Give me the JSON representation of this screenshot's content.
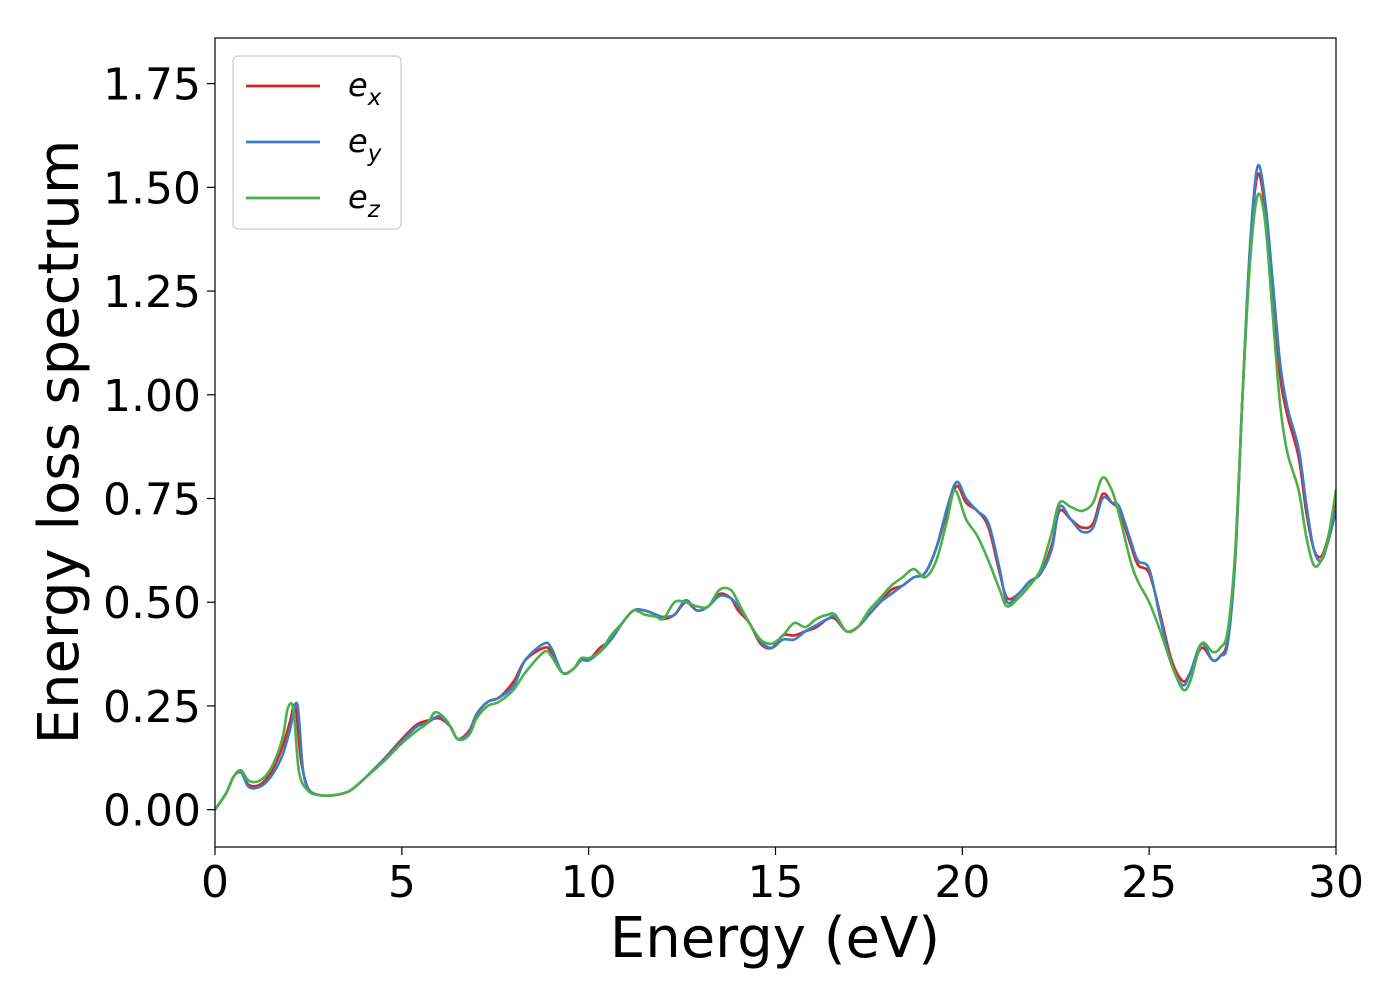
{
  "chart_data": {
    "type": "line",
    "title": "",
    "xlabel": "Energy (eV)",
    "ylabel": "Energy loss spectrum",
    "xlim": [
      0,
      30
    ],
    "ylim": [
      -0.09,
      1.86
    ],
    "xticks": [
      0,
      5,
      10,
      15,
      20,
      25,
      30
    ],
    "xtick_labels": [
      "0",
      "5",
      "10",
      "15",
      "20",
      "25",
      "30"
    ],
    "yticks": [
      0.0,
      0.25,
      0.5,
      0.75,
      1.0,
      1.25,
      1.5,
      1.75
    ],
    "ytick_labels": [
      "0.00",
      "0.25",
      "0.50",
      "0.75",
      "1.00",
      "1.25",
      "1.50",
      "1.75"
    ],
    "grid": false,
    "legend_position": "upper-left",
    "legend": [
      {
        "base": "e",
        "sub": "x"
      },
      {
        "base": "e",
        "sub": "y"
      },
      {
        "base": "e",
        "sub": "z"
      }
    ],
    "series": [
      {
        "name": "e_x",
        "color": "#d62728",
        "x": [
          0,
          0.3,
          0.5,
          0.7,
          0.9,
          1.2,
          1.5,
          1.8,
          2.0,
          2.15,
          2.3,
          2.5,
          2.8,
          3.2,
          3.6,
          4.0,
          4.5,
          5.0,
          5.4,
          5.7,
          6.0,
          6.3,
          6.5,
          6.8,
          7.0,
          7.3,
          7.6,
          8.0,
          8.3,
          8.8,
          9.0,
          9.3,
          9.6,
          9.8,
          10.0,
          10.3,
          10.6,
          10.9,
          11.2,
          11.5,
          11.8,
          12.0,
          12.3,
          12.6,
          12.9,
          13.2,
          13.5,
          13.8,
          14.0,
          14.3,
          14.6,
          14.9,
          15.2,
          15.5,
          15.8,
          16.1,
          16.4,
          16.6,
          16.9,
          17.2,
          17.5,
          17.8,
          18.1,
          18.4,
          18.7,
          19.0,
          19.3,
          19.6,
          19.85,
          20.1,
          20.4,
          20.7,
          21.0,
          21.2,
          21.5,
          21.8,
          22.1,
          22.4,
          22.6,
          22.9,
          23.2,
          23.5,
          23.75,
          24.0,
          24.2,
          24.5,
          24.7,
          25.0,
          25.3,
          25.6,
          25.9,
          26.1,
          26.4,
          26.7,
          26.9,
          27.1,
          27.3,
          27.5,
          27.7,
          27.9,
          28.1,
          28.3,
          28.5,
          28.7,
          29.0,
          29.2,
          29.4,
          29.6,
          29.8,
          30.0
        ],
        "y": [
          0.0,
          0.04,
          0.08,
          0.09,
          0.06,
          0.06,
          0.09,
          0.15,
          0.21,
          0.25,
          0.12,
          0.05,
          0.035,
          0.035,
          0.045,
          0.075,
          0.12,
          0.17,
          0.205,
          0.215,
          0.22,
          0.2,
          0.17,
          0.19,
          0.23,
          0.26,
          0.27,
          0.31,
          0.36,
          0.39,
          0.38,
          0.33,
          0.34,
          0.365,
          0.36,
          0.39,
          0.41,
          0.45,
          0.48,
          0.48,
          0.47,
          0.46,
          0.47,
          0.5,
          0.48,
          0.49,
          0.52,
          0.51,
          0.48,
          0.45,
          0.4,
          0.39,
          0.42,
          0.42,
          0.43,
          0.44,
          0.46,
          0.46,
          0.43,
          0.44,
          0.47,
          0.5,
          0.53,
          0.54,
          0.56,
          0.57,
          0.63,
          0.72,
          0.78,
          0.74,
          0.72,
          0.68,
          0.57,
          0.51,
          0.52,
          0.55,
          0.57,
          0.64,
          0.72,
          0.7,
          0.68,
          0.69,
          0.76,
          0.74,
          0.72,
          0.64,
          0.59,
          0.57,
          0.47,
          0.36,
          0.31,
          0.33,
          0.39,
          0.36,
          0.37,
          0.41,
          0.6,
          1.0,
          1.35,
          1.53,
          1.45,
          1.27,
          1.05,
          0.95,
          0.85,
          0.72,
          0.63,
          0.61,
          0.66,
          0.75
        ]
      },
      {
        "name": "e_y",
        "color": "#3a7fc4",
        "x": [
          0,
          0.3,
          0.5,
          0.7,
          0.9,
          1.2,
          1.5,
          1.8,
          2.0,
          2.2,
          2.35,
          2.5,
          2.8,
          3.2,
          3.6,
          4.0,
          4.5,
          5.0,
          5.4,
          5.7,
          6.0,
          6.3,
          6.5,
          6.8,
          7.0,
          7.3,
          7.6,
          8.0,
          8.3,
          8.8,
          9.0,
          9.3,
          9.6,
          9.8,
          10.0,
          10.3,
          10.6,
          10.9,
          11.2,
          11.5,
          11.8,
          12.0,
          12.3,
          12.6,
          12.9,
          13.2,
          13.5,
          13.8,
          14.0,
          14.3,
          14.6,
          14.9,
          15.2,
          15.5,
          15.8,
          16.1,
          16.4,
          16.6,
          16.9,
          17.2,
          17.5,
          17.8,
          18.1,
          18.4,
          18.7,
          19.0,
          19.3,
          19.6,
          19.85,
          20.1,
          20.4,
          20.7,
          21.0,
          21.2,
          21.5,
          21.8,
          22.1,
          22.4,
          22.6,
          22.9,
          23.2,
          23.5,
          23.75,
          24.0,
          24.2,
          24.5,
          24.7,
          25.0,
          25.3,
          25.6,
          25.9,
          26.1,
          26.4,
          26.7,
          26.9,
          27.1,
          27.3,
          27.5,
          27.7,
          27.9,
          28.1,
          28.3,
          28.5,
          28.7,
          29.0,
          29.2,
          29.4,
          29.6,
          29.8,
          30.0
        ],
        "y": [
          0.0,
          0.04,
          0.08,
          0.09,
          0.055,
          0.055,
          0.08,
          0.13,
          0.19,
          0.255,
          0.1,
          0.05,
          0.035,
          0.035,
          0.045,
          0.075,
          0.12,
          0.165,
          0.2,
          0.21,
          0.225,
          0.2,
          0.17,
          0.185,
          0.23,
          0.26,
          0.27,
          0.3,
          0.36,
          0.4,
          0.39,
          0.33,
          0.34,
          0.36,
          0.36,
          0.38,
          0.41,
          0.45,
          0.48,
          0.48,
          0.47,
          0.465,
          0.47,
          0.505,
          0.48,
          0.49,
          0.515,
          0.51,
          0.49,
          0.45,
          0.405,
          0.39,
          0.41,
          0.41,
          0.43,
          0.445,
          0.46,
          0.465,
          0.43,
          0.44,
          0.47,
          0.5,
          0.52,
          0.54,
          0.56,
          0.57,
          0.63,
          0.73,
          0.79,
          0.75,
          0.72,
          0.69,
          0.58,
          0.5,
          0.52,
          0.55,
          0.57,
          0.63,
          0.73,
          0.7,
          0.67,
          0.68,
          0.75,
          0.74,
          0.73,
          0.65,
          0.6,
          0.58,
          0.46,
          0.35,
          0.3,
          0.33,
          0.4,
          0.36,
          0.37,
          0.4,
          0.6,
          1.0,
          1.36,
          1.55,
          1.47,
          1.28,
          1.08,
          0.97,
          0.87,
          0.74,
          0.63,
          0.6,
          0.65,
          0.72
        ]
      },
      {
        "name": "e_z",
        "color": "#4daf4a",
        "x": [
          0,
          0.3,
          0.5,
          0.7,
          0.9,
          1.2,
          1.5,
          1.8,
          1.95,
          2.1,
          2.25,
          2.5,
          2.8,
          3.2,
          3.6,
          4.0,
          4.5,
          5.0,
          5.4,
          5.7,
          5.9,
          6.2,
          6.5,
          6.8,
          7.0,
          7.3,
          7.6,
          8.0,
          8.3,
          8.8,
          9.0,
          9.3,
          9.6,
          9.8,
          10.0,
          10.3,
          10.6,
          10.9,
          11.2,
          11.5,
          11.8,
          12.0,
          12.3,
          12.6,
          12.9,
          13.2,
          13.5,
          13.8,
          14.0,
          14.3,
          14.6,
          14.9,
          15.2,
          15.5,
          15.8,
          16.1,
          16.4,
          16.6,
          16.9,
          17.2,
          17.5,
          17.8,
          18.1,
          18.4,
          18.7,
          19.0,
          19.3,
          19.6,
          19.8,
          20.1,
          20.4,
          20.7,
          21.0,
          21.2,
          21.5,
          21.8,
          22.1,
          22.4,
          22.6,
          22.9,
          23.2,
          23.5,
          23.75,
          24.0,
          24.2,
          24.5,
          24.7,
          25.0,
          25.3,
          25.6,
          25.9,
          26.1,
          26.4,
          26.7,
          26.9,
          27.1,
          27.3,
          27.5,
          27.7,
          27.9,
          28.1,
          28.3,
          28.5,
          28.7,
          29.0,
          29.2,
          29.4,
          29.6,
          29.8,
          30.0
        ],
        "y": [
          0.0,
          0.04,
          0.08,
          0.095,
          0.07,
          0.07,
          0.1,
          0.17,
          0.245,
          0.24,
          0.09,
          0.045,
          0.035,
          0.035,
          0.045,
          0.075,
          0.115,
          0.16,
          0.19,
          0.21,
          0.235,
          0.215,
          0.17,
          0.18,
          0.22,
          0.25,
          0.26,
          0.29,
          0.33,
          0.38,
          0.37,
          0.33,
          0.34,
          0.365,
          0.365,
          0.38,
          0.42,
          0.45,
          0.48,
          0.47,
          0.465,
          0.46,
          0.5,
          0.5,
          0.49,
          0.49,
          0.53,
          0.53,
          0.5,
          0.45,
          0.41,
          0.4,
          0.42,
          0.45,
          0.44,
          0.46,
          0.47,
          0.47,
          0.43,
          0.44,
          0.48,
          0.51,
          0.54,
          0.56,
          0.58,
          0.56,
          0.6,
          0.7,
          0.77,
          0.7,
          0.66,
          0.6,
          0.53,
          0.49,
          0.51,
          0.54,
          0.58,
          0.67,
          0.74,
          0.73,
          0.72,
          0.74,
          0.8,
          0.77,
          0.71,
          0.6,
          0.55,
          0.5,
          0.43,
          0.35,
          0.29,
          0.31,
          0.4,
          0.38,
          0.39,
          0.43,
          0.62,
          1.0,
          1.32,
          1.48,
          1.42,
          1.2,
          0.98,
          0.86,
          0.77,
          0.66,
          0.59,
          0.6,
          0.66,
          0.77
        ]
      }
    ]
  }
}
